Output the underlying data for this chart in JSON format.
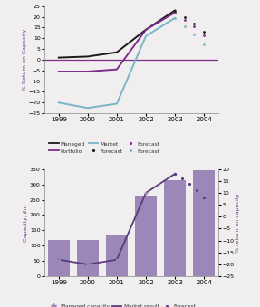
{
  "top": {
    "years_solid": [
      1999,
      2000,
      2001,
      2002,
      2003
    ],
    "years_dotted": [
      2003,
      2003.33,
      2003.67,
      2004
    ],
    "managed_solid": [
      1.0,
      1.5,
      3.5,
      14.0,
      23.0
    ],
    "managed_dotted": [
      23.0,
      20.0,
      17.0,
      13.0
    ],
    "portfolio_solid": [
      -5.5,
      -5.5,
      -4.5,
      14.0,
      22.0
    ],
    "portfolio_dotted": [
      22.0,
      18.5,
      15.5,
      11.5
    ],
    "market_solid": [
      -20.0,
      -22.5,
      -20.5,
      11.0,
      19.5
    ],
    "market_dotted": [
      19.5,
      15.5,
      12.0,
      7.0
    ],
    "hline_y": 0,
    "ylim": [
      -25,
      25
    ],
    "yticks": [
      -25,
      -20,
      -15,
      -10,
      -5,
      0,
      5,
      10,
      15,
      20,
      25
    ],
    "ylabel": "% Return on Capacity",
    "managed_color": "#1a1a1a",
    "portfolio_color": "#7b2d8b",
    "market_color": "#7ab5c8",
    "hline_color": "#7b2d8b",
    "bg_color": "#f0eeee"
  },
  "bottom": {
    "years": [
      1999,
      2000,
      2001,
      2002,
      2003,
      2004
    ],
    "bar_values": [
      118,
      118,
      135,
      262,
      315,
      345
    ],
    "bar_color": "#9b87b8",
    "line_solid_x": [
      1999,
      2000,
      2001,
      2002,
      2003
    ],
    "line_solid_y": [
      -18,
      -20,
      -18,
      10,
      18
    ],
    "line_dot_x": [
      2003,
      2003.25,
      2003.5,
      2003.75,
      2004
    ],
    "line_dot_y": [
      18,
      16,
      14,
      11,
      8
    ],
    "line_color": "#5b3a7e",
    "marker_color": "#9b87b8",
    "ylabel_left": "Capacity, £m",
    "ylabel_right": "% return on capacity",
    "ylim_left": [
      0,
      350
    ],
    "ylim_right": [
      -25,
      20
    ],
    "yticks_left": [
      0,
      50,
      100,
      150,
      200,
      250,
      300,
      350
    ],
    "yticks_right": [
      -25,
      -20,
      -15,
      -10,
      -5,
      0,
      5,
      10,
      15,
      20
    ],
    "bg_color": "#f0eeee"
  },
  "fig_bg": "#f0eeee"
}
